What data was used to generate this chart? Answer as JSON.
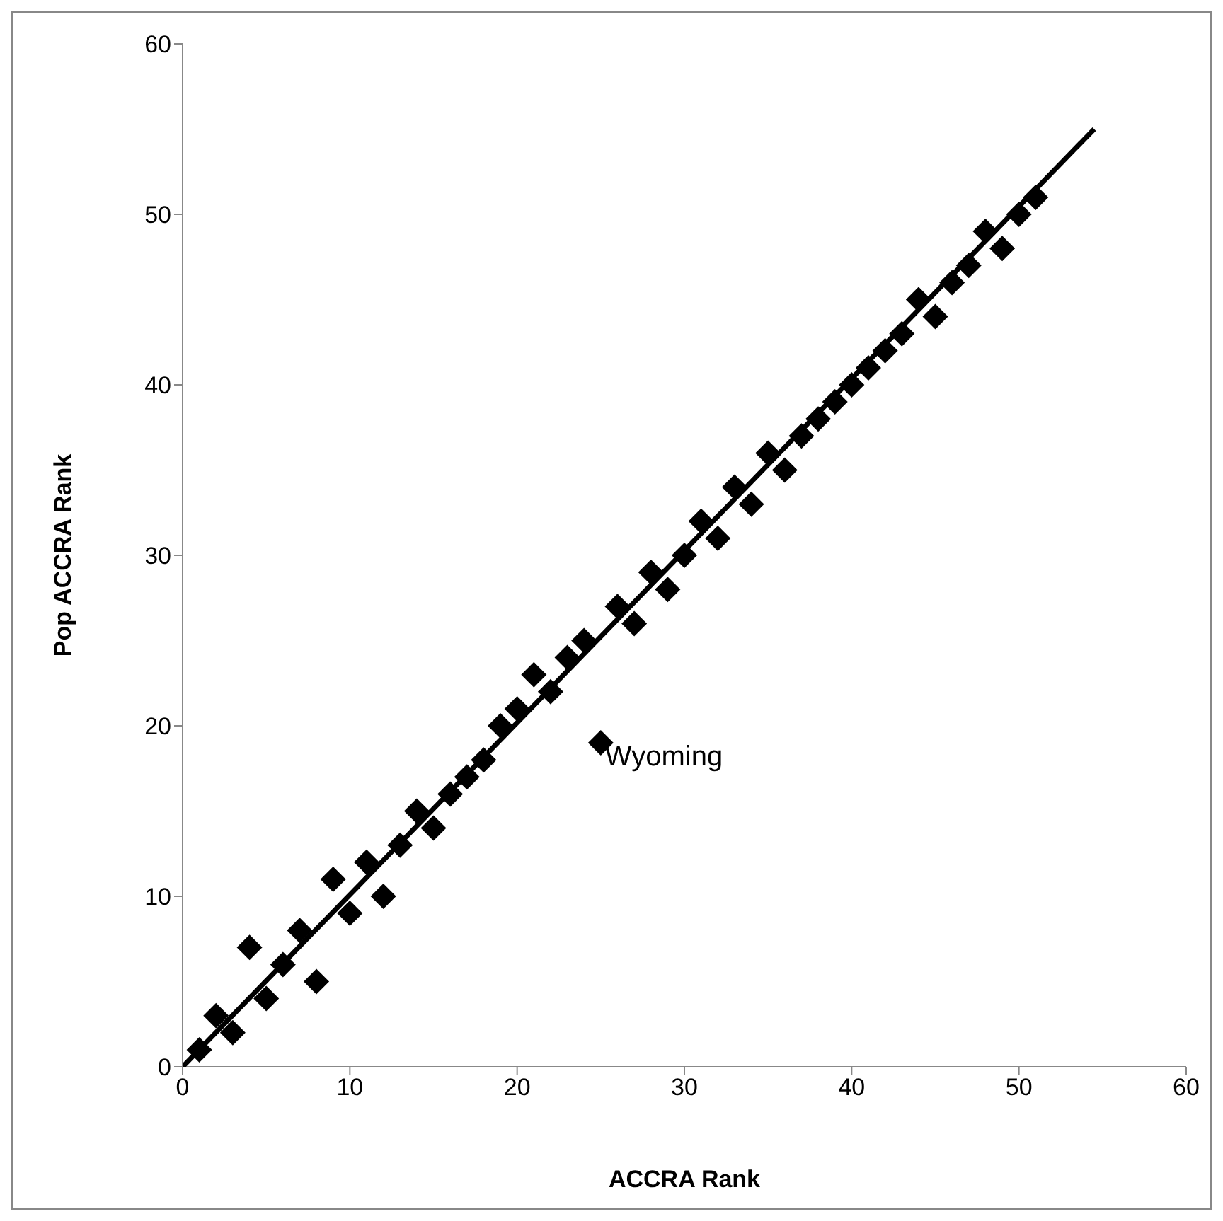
{
  "chart_data": {
    "type": "scatter",
    "xlabel": "ACCRA Rank",
    "ylabel": "Pop ACCRA Rank",
    "marker": "diamond",
    "xlim": [
      0,
      60
    ],
    "ylim": [
      0,
      60
    ],
    "xticks": [
      0,
      10,
      20,
      30,
      40,
      50,
      60
    ],
    "yticks": [
      0,
      10,
      20,
      30,
      40,
      50,
      60
    ],
    "annotations": [
      {
        "text": "Wyoming",
        "x": 25,
        "y": 19
      }
    ],
    "series": [
      {
        "color": "#000000",
        "x": [
          1,
          2,
          3,
          4,
          5,
          6,
          7,
          8,
          9,
          10,
          11,
          12,
          13,
          14,
          15,
          16,
          17,
          18,
          19,
          20,
          21,
          22,
          23,
          24,
          25,
          26,
          27,
          28,
          29,
          30,
          31,
          32,
          33,
          34,
          35,
          36,
          37,
          38,
          39,
          40,
          41,
          42,
          43,
          44,
          45,
          46,
          47,
          48,
          49,
          50,
          51
        ],
        "values": [
          1,
          3,
          2,
          7,
          4,
          6,
          8,
          5,
          11,
          9,
          12,
          10,
          13,
          15,
          14,
          16,
          17,
          18,
          20,
          21,
          23,
          22,
          24,
          25,
          19,
          27,
          26,
          29,
          28,
          30,
          32,
          31,
          34,
          33,
          36,
          35,
          37,
          38,
          39,
          40,
          41,
          42,
          43,
          45,
          44,
          46,
          47,
          49,
          48,
          50,
          51
        ]
      },
      {
        "type": "line",
        "marker": "none",
        "color": "#000000",
        "x": [
          0,
          54.5
        ],
        "values": [
          0,
          55
        ]
      }
    ]
  }
}
